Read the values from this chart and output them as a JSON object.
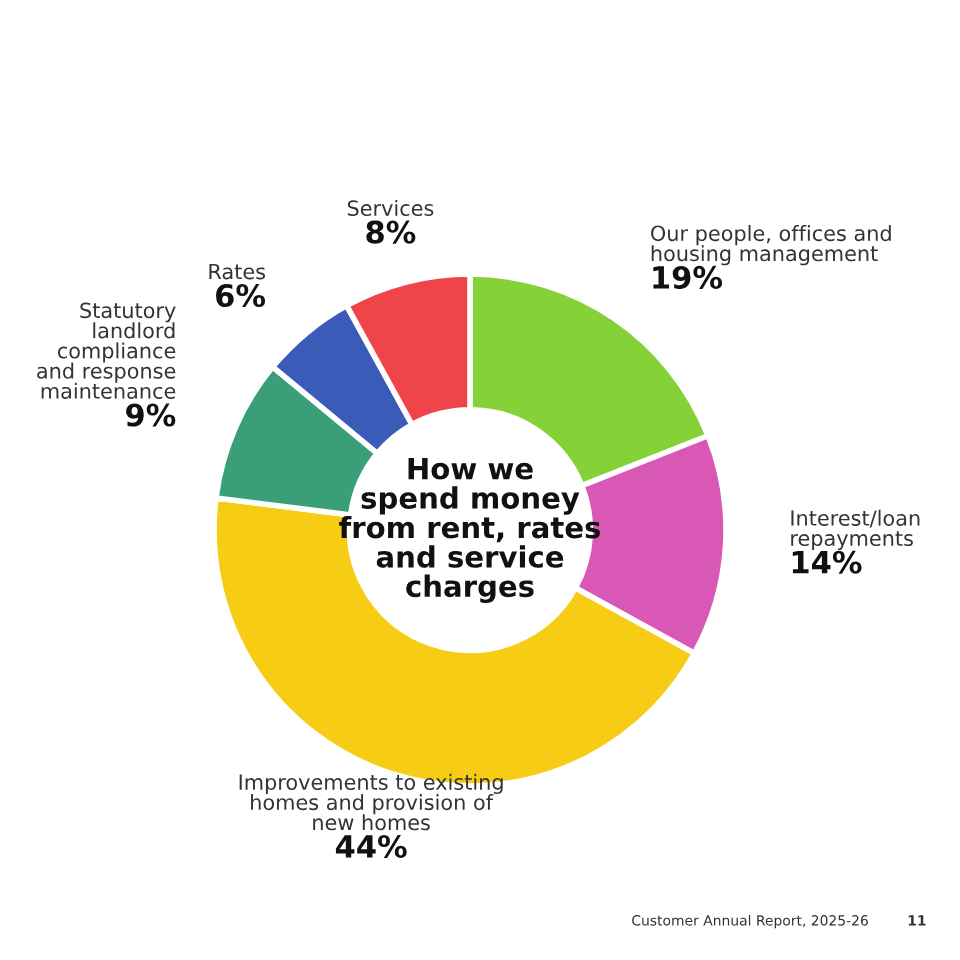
{
  "chart_data": {
    "type": "donut",
    "title": "How we\nspend money\nfrom rent, rates\nand service\ncharges",
    "categories": [
      "Our people, offices and\nhousing management",
      "Interest/loan\nrepayments",
      "Improvements to existing\nhomes and provision of\nnew homes",
      "Statutory\nlandlord\ncompliance\nand response\nmaintenance",
      "Rates",
      "Services"
    ],
    "values": [
      19,
      14,
      44,
      9,
      6,
      8
    ],
    "colors": [
      "#84d138",
      "#d957b5",
      "#f6cd14",
      "#3a9e78",
      "#3b5bb8",
      "#ef4449"
    ],
    "value_labels": [
      "19%",
      "14%",
      "44%",
      "9%",
      "6%",
      "8%"
    ],
    "legend": false,
    "annotations": [
      "Customer Annual Report, 2025-26",
      "11"
    ]
  }
}
